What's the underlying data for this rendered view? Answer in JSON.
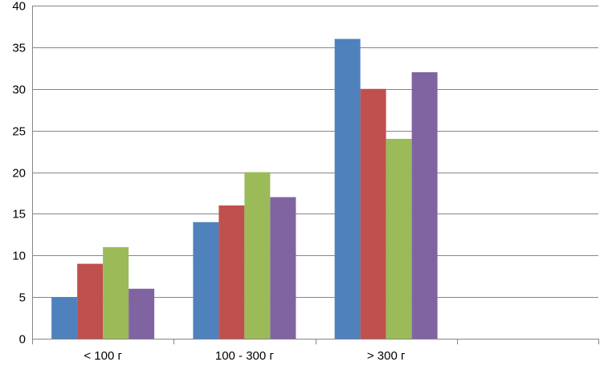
{
  "chart_data": {
    "type": "bar",
    "title": "",
    "xlabel": "",
    "ylabel": "",
    "categories": [
      "< 100 г",
      "100 - 300 г",
      "> 300 г",
      ""
    ],
    "series": [
      {
        "color": "#4F81BD",
        "values": [
          5,
          14,
          36,
          null
        ]
      },
      {
        "color": "#C0504D",
        "values": [
          9,
          16,
          30,
          null
        ]
      },
      {
        "color": "#9BBB59",
        "values": [
          11,
          20,
          24,
          null
        ]
      },
      {
        "color": "#8064A2",
        "values": [
          6,
          17,
          32,
          null
        ]
      }
    ],
    "ylim": [
      0,
      40
    ],
    "yticks": [
      0,
      5,
      10,
      15,
      20,
      25,
      30,
      35,
      40
    ],
    "grid": true,
    "legend": "none"
  }
}
